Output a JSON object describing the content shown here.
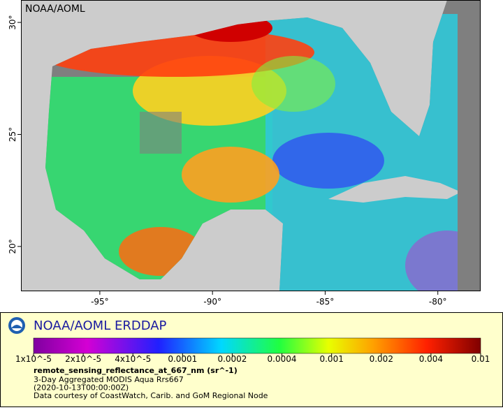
{
  "map": {
    "label": "NOAA/AOML",
    "xlim": [
      -98.5,
      -78.1
    ],
    "ylim": [
      18,
      31
    ],
    "xticks": [
      {
        "value": -95,
        "label": "-95°"
      },
      {
        "value": -90,
        "label": "-90°"
      },
      {
        "value": -85,
        "label": "-85°"
      },
      {
        "value": -80,
        "label": "-80°"
      }
    ],
    "yticks": [
      {
        "value": 20,
        "label": "20°"
      },
      {
        "value": 25,
        "label": "25°"
      },
      {
        "value": 30,
        "label": "30°"
      }
    ]
  },
  "legend": {
    "title": "NOAA/AOML ERDDAP",
    "colorbar": {
      "scale": "log",
      "ticks": [
        {
          "value": 1e-05,
          "label": "1x10^-5"
        },
        {
          "value": 2e-05,
          "label": "2x10^-5"
        },
        {
          "value": 4e-05,
          "label": "4x10^-5"
        },
        0.0001,
        0.0002,
        0.0004,
        0.001,
        0.002,
        0.004,
        0.01
      ]
    },
    "variable": "remote_sensing_reflectance_at_667_nm (sr^-1)",
    "lines": [
      "3-Day Aggregated MODIS Aqua Rrs667",
      "(2020-10-13T00:00:00Z)",
      "Data courtesy of CoastWatch, Carib. and GoM Regional Node"
    ]
  }
}
